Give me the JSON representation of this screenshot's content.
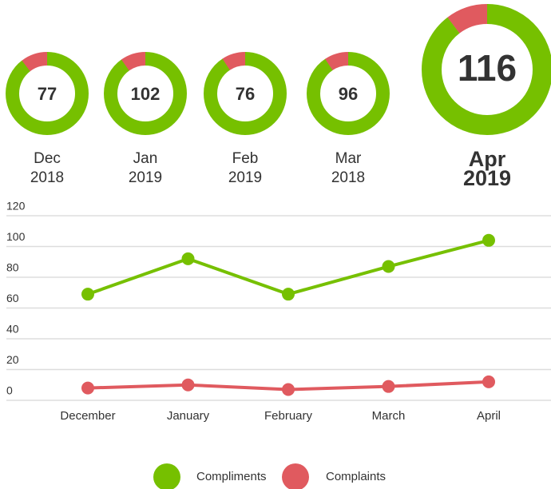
{
  "donuts": [
    {
      "month": "Dec",
      "year": "2018",
      "total": 77
    },
    {
      "month": "Jan",
      "year": "2019",
      "total": 102
    },
    {
      "month": "Feb",
      "year": "2019",
      "total": 76
    },
    {
      "month": "Mar",
      "year": "2018",
      "total": 96
    },
    {
      "month": "Apr",
      "year": "2019",
      "total": 116
    }
  ],
  "chart_data": {
    "type": "line",
    "categories": [
      "December",
      "January",
      "February",
      "March",
      "April"
    ],
    "series": [
      {
        "name": "Compliments",
        "color": "#76c000",
        "values": [
          69,
          92,
          69,
          87,
          104
        ]
      },
      {
        "name": "Complaints",
        "color": "#e05a5f",
        "values": [
          8,
          10,
          7,
          9,
          12
        ]
      }
    ],
    "ylim": [
      0,
      120
    ],
    "yticks": [
      0,
      20,
      40,
      60,
      80,
      100,
      120
    ],
    "grid": true
  }
}
